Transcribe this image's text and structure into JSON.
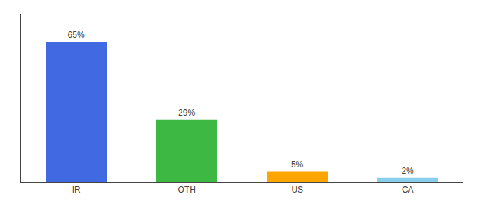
{
  "chart_data": {
    "type": "bar",
    "categories": [
      "IR",
      "OTH",
      "US",
      "CA"
    ],
    "values": [
      65,
      29,
      5,
      2
    ],
    "value_labels": [
      "65%",
      "29%",
      "5%",
      "2%"
    ],
    "data_labels": true,
    "colors": [
      "#4169E1",
      "#3CB843",
      "#FFA500",
      "#87CEEB"
    ],
    "ylim": [
      0,
      78
    ],
    "grid": false,
    "tick_labels": "x"
  }
}
